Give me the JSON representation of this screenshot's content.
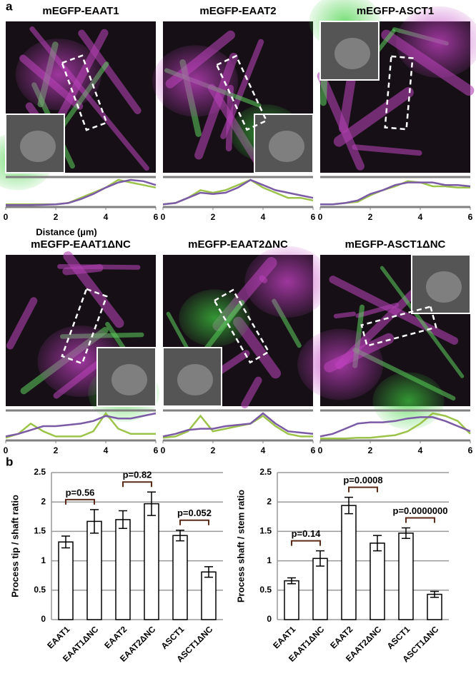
{
  "panel_labels": [
    "a",
    "b"
  ],
  "chart_data": [
    {
      "type": "line",
      "title": "mEGFP-EAAT1",
      "xlabel": "Distance (µm)",
      "x": [
        0,
        0.5,
        1,
        1.5,
        2,
        2.5,
        3,
        3.5,
        4,
        4.5,
        5,
        5.5,
        6
      ],
      "xlim": [
        0,
        6
      ],
      "xticks": [
        0,
        2,
        4,
        6
      ],
      "ylim": [
        0,
        1
      ],
      "series": [
        {
          "color": "#9dc44a",
          "values": [
            0.05,
            0.05,
            0.05,
            0.05,
            0.05,
            0.1,
            0.3,
            0.5,
            0.7,
            1.0,
            0.9,
            0.8,
            0.7
          ]
        },
        {
          "color": "#7b5aa6",
          "values": [
            0.02,
            0.02,
            0.02,
            0.03,
            0.05,
            0.1,
            0.25,
            0.45,
            0.7,
            0.9,
            1.0,
            0.95,
            0.8
          ]
        }
      ]
    },
    {
      "type": "line",
      "title": "mEGFP-EAAT2",
      "x": [
        0,
        0.5,
        1,
        1.5,
        2,
        2.5,
        3,
        3.5,
        4,
        4.5,
        5,
        5.5,
        6
      ],
      "xlim": [
        0,
        6
      ],
      "xticks": [
        0,
        2,
        4,
        6
      ],
      "ylim": [
        0,
        1
      ],
      "series": [
        {
          "color": "#9dc44a",
          "values": [
            0.05,
            0.1,
            0.3,
            0.6,
            0.5,
            0.6,
            0.8,
            1.0,
            0.7,
            0.5,
            0.3,
            0.3,
            0.2
          ]
        },
        {
          "color": "#7b5aa6",
          "values": [
            0.05,
            0.1,
            0.3,
            0.5,
            0.45,
            0.5,
            0.7,
            1.0,
            0.8,
            0.6,
            0.5,
            0.4,
            0.3
          ]
        }
      ]
    },
    {
      "type": "line",
      "title": "mEGFP-ASCT1",
      "x": [
        0,
        0.5,
        1,
        1.5,
        2,
        2.5,
        3,
        3.5,
        4,
        4.5,
        5,
        5.5,
        6
      ],
      "xlim": [
        0,
        6
      ],
      "xticks": [
        0,
        2,
        4,
        6
      ],
      "ylim": [
        0,
        1
      ],
      "series": [
        {
          "color": "#9dc44a",
          "values": [
            0.05,
            0.05,
            0.1,
            0.15,
            0.4,
            0.6,
            0.75,
            0.95,
            0.9,
            0.75,
            0.75,
            0.7,
            0.7
          ]
        },
        {
          "color": "#7b5aa6",
          "values": [
            0.05,
            0.05,
            0.1,
            0.2,
            0.45,
            0.6,
            0.8,
            0.9,
            0.9,
            0.9,
            0.8,
            0.8,
            0.75
          ]
        }
      ]
    },
    {
      "type": "line",
      "title": "mEGFP-EAAT1ΔNC",
      "x": [
        0,
        0.5,
        1,
        1.5,
        2,
        2.5,
        3,
        3.5,
        4,
        4.5,
        5,
        5.5,
        6
      ],
      "xlim": [
        0,
        6
      ],
      "xticks": [
        0,
        2,
        4,
        6
      ],
      "ylim": [
        0,
        1
      ],
      "series": [
        {
          "color": "#9dc44a",
          "values": [
            0.05,
            0.2,
            0.6,
            0.3,
            0.1,
            0.1,
            0.1,
            0.3,
            1.0,
            0.4,
            0.2,
            0.2,
            0.2
          ]
        },
        {
          "color": "#7b5aa6",
          "values": [
            0.1,
            0.2,
            0.35,
            0.5,
            0.5,
            0.55,
            0.6,
            0.7,
            0.9,
            0.8,
            0.8,
            0.9,
            1.0
          ]
        }
      ]
    },
    {
      "type": "line",
      "title": "mEGFP-EAAT2ΔNC",
      "x": [
        0,
        0.5,
        1,
        1.5,
        2,
        2.5,
        3,
        3.5,
        4,
        4.5,
        5,
        5.5,
        6
      ],
      "xlim": [
        0,
        6
      ],
      "xticks": [
        0,
        2,
        4,
        6
      ],
      "ylim": [
        0,
        1
      ],
      "series": [
        {
          "color": "#9dc44a",
          "values": [
            0.05,
            0.1,
            0.3,
            0.9,
            0.3,
            0.4,
            0.5,
            0.6,
            0.9,
            0.5,
            0.2,
            0.1,
            0.1
          ]
        },
        {
          "color": "#7b5aa6",
          "values": [
            0.1,
            0.2,
            0.35,
            0.4,
            0.4,
            0.5,
            0.55,
            0.6,
            1.0,
            0.6,
            0.3,
            0.25,
            0.2
          ]
        }
      ]
    },
    {
      "type": "line",
      "title": "mEGFP-ASCT1ΔNC",
      "x": [
        0,
        0.5,
        1,
        1.5,
        2,
        2.5,
        3,
        3.5,
        4,
        4.5,
        5,
        5.5,
        6
      ],
      "xlim": [
        0,
        6
      ],
      "xticks": [
        0,
        2,
        4,
        6
      ],
      "ylim": [
        0,
        1
      ],
      "series": [
        {
          "color": "#9dc44a",
          "values": [
            0.02,
            0.02,
            0.02,
            0.05,
            0.05,
            0.1,
            0.15,
            0.3,
            0.6,
            1.0,
            0.9,
            0.7,
            0.2
          ]
        },
        {
          "color": "#7b5aa6",
          "values": [
            0.1,
            0.2,
            0.4,
            0.6,
            0.65,
            0.65,
            0.7,
            0.8,
            0.85,
            0.85,
            0.7,
            0.5,
            0.3
          ]
        }
      ]
    },
    {
      "type": "bar",
      "ylabel": "Process tip / shaft ratio",
      "categories": [
        "EAAT1",
        "EAAT1ΔNC",
        "EAAT2",
        "EAAT2ΔNC",
        "ASCT1",
        "ASCT1ΔNC"
      ],
      "values": [
        1.32,
        1.67,
        1.7,
        1.97,
        1.43,
        0.81
      ],
      "errors": [
        0.1,
        0.2,
        0.15,
        0.2,
        0.09,
        0.09
      ],
      "color": "#ffffff",
      "ylim": [
        0,
        2.5
      ],
      "yticks": [
        0,
        0.5,
        1,
        1.5,
        2,
        2.5
      ],
      "grid": true,
      "annotations": [
        "p=0.56",
        "p=0.82",
        "p=0.052"
      ]
    },
    {
      "type": "bar",
      "ylabel": "Process shaft / stem ratio",
      "categories": [
        "EAAT1",
        "EAAT1ΔNC",
        "EAAT2",
        "EAAT2ΔNC",
        "ASCT1",
        "ASCT1ΔNC"
      ],
      "values": [
        0.66,
        1.04,
        1.94,
        1.3,
        1.47,
        0.43
      ],
      "errors": [
        0.05,
        0.13,
        0.14,
        0.13,
        0.09,
        0.05
      ],
      "color": "#ffffff",
      "ylim": [
        0,
        2.5
      ],
      "yticks": [
        0,
        0.5,
        1,
        1.5,
        2,
        2.5
      ],
      "grid": true,
      "annotations": [
        "p=0.14",
        "p=0.0008",
        "p=0.0000000"
      ]
    }
  ]
}
